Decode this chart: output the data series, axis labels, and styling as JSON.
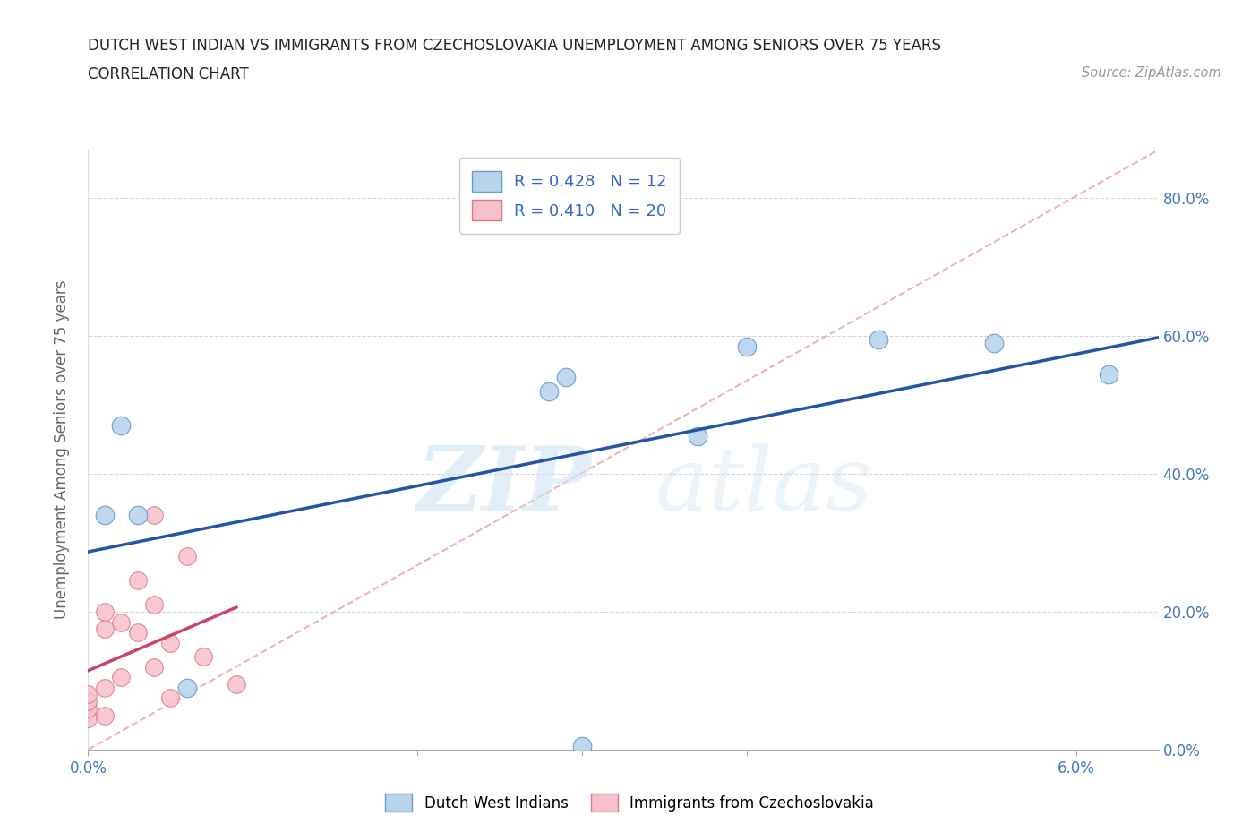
{
  "title_line1": "DUTCH WEST INDIAN VS IMMIGRANTS FROM CZECHOSLOVAKIA UNEMPLOYMENT AMONG SENIORS OVER 75 YEARS",
  "title_line2": "CORRELATION CHART",
  "source_text": "Source: ZipAtlas.com",
  "ylabel": "Unemployment Among Seniors over 75 years",
  "xlim": [
    0.0,
    0.065
  ],
  "ylim": [
    0.0,
    0.87
  ],
  "blue_series": {
    "label": "Dutch West Indians",
    "R": 0.428,
    "N": 12,
    "color": "#b8d4eb",
    "edge_color": "#6699cc",
    "line_color": "#2255aa",
    "x": [
      0.001,
      0.002,
      0.003,
      0.006,
      0.028,
      0.029,
      0.037,
      0.04,
      0.048,
      0.055,
      0.062,
      0.03
    ],
    "y": [
      0.34,
      0.47,
      0.34,
      0.09,
      0.52,
      0.54,
      0.455,
      0.585,
      0.595,
      0.59,
      0.545,
      0.005
    ]
  },
  "pink_series": {
    "label": "Immigrants from Czechoslovakia",
    "R": 0.41,
    "N": 20,
    "color": "#f8c0cc",
    "edge_color": "#dd7788",
    "line_color": "#cc4466",
    "x": [
      0.0,
      0.0,
      0.0,
      0.0,
      0.001,
      0.001,
      0.001,
      0.001,
      0.002,
      0.002,
      0.003,
      0.003,
      0.004,
      0.004,
      0.004,
      0.005,
      0.005,
      0.006,
      0.007,
      0.009
    ],
    "y": [
      0.045,
      0.06,
      0.07,
      0.08,
      0.05,
      0.09,
      0.175,
      0.2,
      0.105,
      0.185,
      0.17,
      0.245,
      0.12,
      0.21,
      0.34,
      0.075,
      0.155,
      0.28,
      0.135,
      0.095
    ]
  },
  "grid_color": "#cccccc",
  "background_color": "#ffffff",
  "title_color": "#222222",
  "source_color": "#999999",
  "tick_color": "#4477bb",
  "right_tick_color": "#4477bb"
}
